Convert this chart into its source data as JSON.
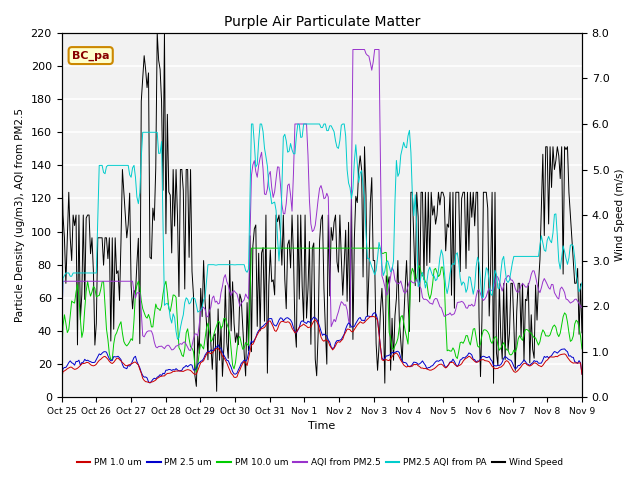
{
  "title": "Purple Air Particulate Matter",
  "ylabel_left": "Particle Density (ug/m3), AQI from PM2.5",
  "ylabel_right": "Wind Speed (m/s)",
  "xlabel": "Time",
  "annotation_text": "BC_pa",
  "ylim_left": [
    0,
    220
  ],
  "ylim_right": [
    0.0,
    8.0
  ],
  "yticks_left": [
    0,
    20,
    40,
    60,
    80,
    100,
    120,
    140,
    160,
    180,
    200,
    220
  ],
  "yticks_right": [
    0.0,
    1.0,
    2.0,
    3.0,
    4.0,
    5.0,
    6.0,
    7.0,
    8.0
  ],
  "xtick_labels": [
    "Oct 25",
    "Oct 26",
    "Oct 27",
    "Oct 28",
    "Oct 29",
    "Oct 30",
    "Oct 31",
    "Nov 1",
    "Nov 2",
    "Nov 3",
    "Nov 4",
    "Nov 5",
    "Nov 6",
    "Nov 7",
    "Nov 8",
    "Nov 9"
  ],
  "background_color": "#ffffff",
  "plot_bg_light": "#f2f2f2",
  "plot_bg_dark": "#e0e0e0",
  "grid_color": "#ffffff",
  "colors": {
    "pm1": "#cc0000",
    "pm25": "#0000cc",
    "pm10": "#00cc00",
    "aqi_pm25": "#9933cc",
    "aqi_pa": "#00cccc",
    "wind": "#000000"
  },
  "legend_entries": [
    "PM 1.0 um",
    "PM 2.5 um",
    "PM 10.0 um",
    "AQI from PM2.5",
    "PM2.5 AQI from PA",
    "Wind Speed"
  ]
}
